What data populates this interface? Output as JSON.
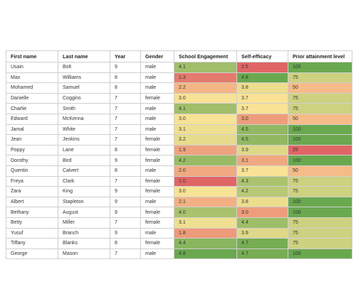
{
  "headers": [
    "First name",
    "Last name",
    "Year",
    "Gender",
    "School Engagement",
    "Self-efficacy",
    "Prior attainment level"
  ],
  "rows": [
    [
      "Usain",
      "Bolt",
      "9",
      "male",
      "4.1",
      "2.5",
      "100"
    ],
    [
      "Max",
      "Williams",
      "8",
      "male",
      "1.3",
      "4.8",
      "75"
    ],
    [
      "Mohamed",
      "Samuel",
      "8",
      "male",
      "2.2",
      "3.8",
      "50"
    ],
    [
      "Danielle",
      "Coggins",
      "7",
      "female",
      "3.0",
      "3.7",
      "75"
    ],
    [
      "Charlie",
      "Smith",
      "7",
      "male",
      "4.1",
      "3.7",
      "75"
    ],
    [
      "Edward",
      "McKenna",
      "7",
      "male",
      "3.0",
      "3.0",
      "50"
    ],
    [
      "Jamal",
      "White",
      "7",
      "male",
      "3.1",
      "4.5",
      "100"
    ],
    [
      "Jean",
      "Jenkins",
      "7",
      "female",
      "3.2",
      "4.5",
      "100"
    ],
    [
      "Poppy",
      "Lane",
      "8",
      "female",
      "1.9",
      "3.9",
      "25"
    ],
    [
      "Dorothy",
      "Bird",
      "9",
      "female",
      "4.2",
      "3.1",
      "100"
    ],
    [
      "Quentin",
      "Calvert",
      "8",
      "male",
      "2.0",
      "3.7",
      "50"
    ],
    [
      "Freya",
      "Clark",
      "7",
      "female",
      "1.0",
      "4.3",
      "75"
    ],
    [
      "Zara",
      "King",
      "9",
      "female",
      "3.0",
      "4.2",
      "75"
    ],
    [
      "Albert",
      "Stapleton",
      "9",
      "male",
      "2.1",
      "3.8",
      "100"
    ],
    [
      "Bethany",
      "August",
      "9",
      "female",
      "4.0",
      "3.0",
      "100"
    ],
    [
      "Betty",
      "Miller",
      "7",
      "female",
      "3.1",
      "4.4",
      "75"
    ],
    [
      "Yusuf",
      "Branch",
      "9",
      "male",
      "1.8",
      "3.9",
      "75"
    ],
    [
      "Tiffany",
      "Blanks",
      "8",
      "female",
      "4.4",
      "4.7",
      "75"
    ],
    [
      "George",
      "Mason",
      "7",
      "male",
      "4.8",
      "4.7",
      "100"
    ]
  ],
  "heatmap_colors": {
    "low": "#e06666",
    "mid": "#ffe599",
    "high": "#6aa84f"
  }
}
